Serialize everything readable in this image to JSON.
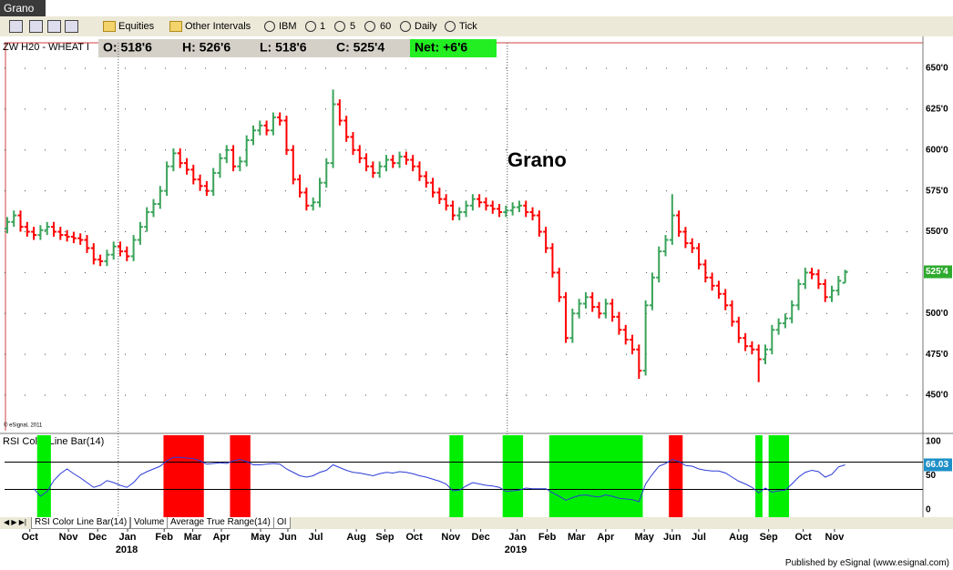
{
  "window": {
    "title": "Grano"
  },
  "toolbar": [
    "Equities",
    "Other Intervals",
    "IBM",
    "1",
    "5",
    "60",
    "Daily",
    "Tick"
  ],
  "chart_data": [
    {
      "type": "ohlc",
      "title": "ZW H20 - WHEAT I",
      "quote": [
        "O: 518'6",
        "H: 526'6",
        "L: 518'6",
        "C: 525'4"
      ],
      "net": "Net: +6'6",
      "annotations": [
        "Grano",
        "© eSignal, 2011"
      ],
      "up_color": "#3aa35a",
      "down_color": "#ff0000",
      "open": [
        552,
        556,
        560,
        553,
        550,
        548,
        551,
        553,
        550,
        548,
        547,
        546,
        545,
        540,
        533,
        532,
        536,
        541,
        538,
        535,
        545,
        553,
        562,
        567,
        575,
        590,
        598,
        592,
        588,
        582,
        578,
        575,
        586,
        595,
        600,
        590,
        593,
        606,
        612,
        615,
        612,
        620,
        618,
        600,
        582,
        574,
        566,
        568,
        580,
        592,
        628,
        618,
        608,
        600,
        595,
        590,
        586,
        590,
        594,
        592,
        596,
        594,
        590,
        584,
        580,
        574,
        570,
        566,
        560,
        562,
        566,
        570,
        568,
        566,
        564,
        562,
        563,
        565,
        566,
        562,
        560,
        550,
        540,
        525,
        510,
        485,
        500,
        506,
        510,
        504,
        500,
        506,
        498,
        490,
        484,
        478,
        465,
        505,
        522,
        538,
        545,
        560,
        550,
        543,
        540,
        530,
        522,
        517,
        512,
        505,
        495,
        485,
        480,
        478,
        472,
        478,
        490,
        494,
        497,
        505,
        518,
        525,
        524,
        518,
        510,
        514,
        518.75
      ],
      "high": [
        559,
        563,
        563,
        556,
        553,
        554,
        556,
        556,
        553,
        551,
        550,
        549,
        548,
        543,
        536,
        539,
        544,
        544,
        541,
        548,
        556,
        565,
        570,
        578,
        593,
        601,
        601,
        595,
        591,
        585,
        581,
        589,
        598,
        603,
        603,
        596,
        609,
        615,
        618,
        618,
        623,
        623,
        621,
        603,
        585,
        577,
        571,
        583,
        595,
        637,
        631,
        621,
        611,
        603,
        598,
        593,
        593,
        597,
        597,
        599,
        599,
        597,
        593,
        587,
        583,
        577,
        573,
        569,
        565,
        569,
        573,
        573,
        571,
        569,
        567,
        566,
        568,
        569,
        569,
        565,
        563,
        553,
        543,
        528,
        513,
        503,
        509,
        513,
        513,
        507,
        509,
        509,
        501,
        493,
        487,
        481,
        508,
        525,
        541,
        548,
        573,
        563,
        553,
        546,
        543,
        533,
        525,
        520,
        515,
        508,
        498,
        488,
        483,
        481,
        481,
        493,
        497,
        500,
        508,
        521,
        528,
        528,
        527,
        521,
        517,
        523,
        526.75
      ],
      "low": [
        549,
        553,
        550,
        547,
        545,
        545,
        548,
        547,
        545,
        544,
        543,
        542,
        537,
        530,
        529,
        529,
        533,
        535,
        532,
        532,
        542,
        550,
        559,
        564,
        572,
        587,
        589,
        585,
        579,
        575,
        572,
        572,
        583,
        592,
        587,
        587,
        590,
        603,
        609,
        609,
        609,
        615,
        597,
        579,
        571,
        563,
        563,
        565,
        577,
        589,
        615,
        605,
        597,
        592,
        587,
        583,
        583,
        587,
        589,
        589,
        591,
        587,
        581,
        577,
        571,
        567,
        563,
        557,
        557,
        559,
        563,
        565,
        563,
        561,
        559,
        559,
        560,
        562,
        559,
        557,
        547,
        537,
        522,
        507,
        482,
        482,
        497,
        503,
        501,
        497,
        497,
        495,
        487,
        481,
        475,
        460,
        462,
        502,
        519,
        535,
        542,
        547,
        540,
        537,
        527,
        519,
        514,
        509,
        502,
        492,
        482,
        477,
        475,
        458,
        469,
        475,
        487,
        491,
        494,
        502,
        515,
        521,
        515,
        507,
        507,
        511,
        518.75
      ],
      "close": [
        556,
        560,
        553,
        550,
        548,
        551,
        553,
        550,
        548,
        547,
        546,
        545,
        540,
        533,
        532,
        536,
        541,
        538,
        535,
        545,
        553,
        562,
        567,
        575,
        590,
        598,
        592,
        588,
        582,
        578,
        575,
        586,
        595,
        600,
        590,
        593,
        606,
        612,
        615,
        612,
        620,
        618,
        600,
        582,
        574,
        566,
        568,
        580,
        592,
        628,
        618,
        608,
        600,
        595,
        590,
        586,
        590,
        594,
        592,
        596,
        594,
        590,
        584,
        580,
        574,
        570,
        566,
        560,
        562,
        566,
        570,
        568,
        566,
        564,
        562,
        563,
        565,
        566,
        562,
        560,
        550,
        540,
        525,
        510,
        485,
        500,
        506,
        510,
        504,
        500,
        506,
        498,
        490,
        484,
        478,
        465,
        505,
        522,
        538,
        545,
        560,
        550,
        543,
        540,
        530,
        522,
        517,
        512,
        505,
        495,
        485,
        480,
        478,
        472,
        478,
        490,
        494,
        497,
        505,
        518,
        525,
        524,
        518,
        510,
        514,
        520,
        525.5
      ],
      "last_tag": {
        "value": 525.5,
        "label": "525'4"
      },
      "xlim": [
        -0.4,
        137.7
      ],
      "ylim": [
        428.3,
        665.6
      ],
      "yticks": [
        {
          "value": 450,
          "label": "450'0"
        },
        {
          "value": 475,
          "label": "475'0"
        },
        {
          "value": 500,
          "label": "500'0"
        },
        {
          "value": 525,
          "label": "525'0"
        },
        {
          "value": 550,
          "label": "550'0"
        },
        {
          "value": 575,
          "label": "575'0"
        },
        {
          "value": 600,
          "label": "600'0"
        },
        {
          "value": 625,
          "label": "625'0"
        },
        {
          "value": 650,
          "label": "650'0"
        }
      ],
      "xticks": [
        {
          "value": 3.4,
          "label": "Oct"
        },
        {
          "value": 9.2,
          "label": "Nov"
        },
        {
          "value": 13.6,
          "label": "Dec"
        },
        {
          "value": 18.1,
          "label": "Jan"
        },
        {
          "value": 23.6,
          "label": "Feb"
        },
        {
          "value": 27.9,
          "label": "Mar"
        },
        {
          "value": 32.2,
          "label": "Apr"
        },
        {
          "value": 38.1,
          "label": "May"
        },
        {
          "value": 42.2,
          "label": "Jun"
        },
        {
          "value": 46.4,
          "label": "Jul"
        },
        {
          "value": 52.5,
          "label": "Aug"
        },
        {
          "value": 56.8,
          "label": "Sep"
        },
        {
          "value": 61.2,
          "label": "Oct"
        },
        {
          "value": 66.7,
          "label": "Nov"
        },
        {
          "value": 71.2,
          "label": "Dec"
        },
        {
          "value": 76.7,
          "label": "Jan"
        },
        {
          "value": 81.2,
          "label": "Feb"
        },
        {
          "value": 85.6,
          "label": "Mar"
        },
        {
          "value": 90,
          "label": "Apr"
        },
        {
          "value": 95.8,
          "label": "May"
        },
        {
          "value": 100,
          "label": "Jun"
        },
        {
          "value": 104,
          "label": "Jul"
        },
        {
          "value": 110,
          "label": "Aug"
        },
        {
          "value": 114.5,
          "label": "Sep"
        },
        {
          "value": 119.7,
          "label": "Oct"
        },
        {
          "value": 124.4,
          "label": "Nov"
        }
      ],
      "year_ticks": [
        {
          "value": 16.7,
          "label": "2018"
        },
        {
          "value": 75.2,
          "label": "2019"
        }
      ],
      "grid": true
    },
    {
      "type": "line",
      "title": "RSI Color Line Bar(14)",
      "color": "#2b3bd6",
      "values": [
        null,
        null,
        null,
        null,
        31,
        20,
        27,
        43,
        53,
        60,
        53,
        47,
        40,
        33,
        36,
        43,
        40,
        36,
        33,
        40,
        51,
        56,
        60,
        64,
        72,
        77,
        77,
        76,
        75,
        72,
        67,
        68,
        69,
        68,
        72,
        74,
        71,
        66,
        66,
        67,
        68,
        67,
        60,
        55,
        50,
        48,
        50,
        55,
        58,
        66,
        62,
        58,
        55,
        54,
        52,
        50,
        53,
        55,
        54,
        56,
        55,
        53,
        50,
        48,
        45,
        42,
        38,
        28,
        29,
        35,
        40,
        38,
        36,
        35,
        33,
        27,
        28,
        29,
        32,
        31,
        31,
        31,
        25,
        20,
        14,
        18,
        21,
        22,
        20,
        19,
        22,
        20,
        17,
        16,
        15,
        12,
        38,
        52,
        64,
        68,
        74,
        71,
        65,
        64,
        60,
        58,
        57,
        57,
        54,
        48,
        42,
        38,
        33,
        25,
        32,
        26,
        28,
        29,
        38,
        48,
        55,
        58,
        56,
        48,
        52,
        63,
        66.03
      ],
      "thresholds": [
        30,
        70
      ],
      "overbought_color": "#ff0000",
      "oversold_color": "#00ee00",
      "xlim": [
        -0.4,
        137.7
      ],
      "ylim": [
        -10.7,
        110.7
      ],
      "yticks": [
        0,
        50,
        100
      ]
    }
  ],
  "tabs": [
    "RSI Color Line Bar(14)",
    "Volume",
    "Average True Range(14)",
    "OI"
  ],
  "footer": "Published by eSignal (www.esignal.com)"
}
